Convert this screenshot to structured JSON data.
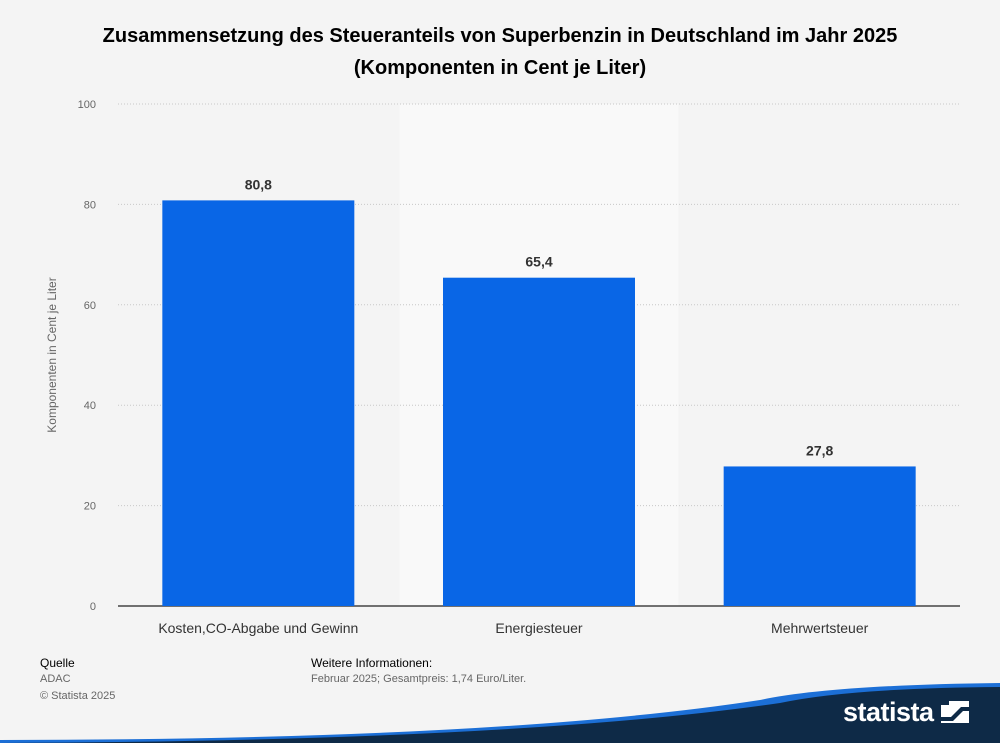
{
  "header": {
    "title_line1": "Zusammensetzung des Steueranteils von Superbenzin in Deutschland im Jahr 2025",
    "title_line2": "(Komponenten in Cent je Liter)"
  },
  "chart_data": {
    "type": "bar",
    "categories": [
      "Kosten,CO-Abgabe und Gewinn",
      "Energiesteuer",
      "Mehrwertsteuer"
    ],
    "values": [
      80.8,
      65.4,
      27.8
    ],
    "value_labels": [
      "80,8",
      "65,4",
      "27,8"
    ],
    "ylabel": "Komponenten in Cent je Liter",
    "xlabel": "",
    "ylim": [
      0,
      100
    ],
    "yticks": [
      0,
      20,
      40,
      60,
      80,
      100
    ],
    "grid": true,
    "highlighted_category_index": 1,
    "bar_color": "#0966e6"
  },
  "footer": {
    "source_label": "Quelle",
    "source_value": "ADAC",
    "copyright": "© Statista 2025",
    "info_label": "Weitere Informationen:",
    "info_value": "Februar 2025; Gesamtpreis: 1,74 Euro/Liter."
  },
  "brand": {
    "logo_text": "statista",
    "logo_icon": "statista-logo-icon",
    "color_dark": "#0e2a47",
    "color_accent": "#1c6fd6"
  }
}
